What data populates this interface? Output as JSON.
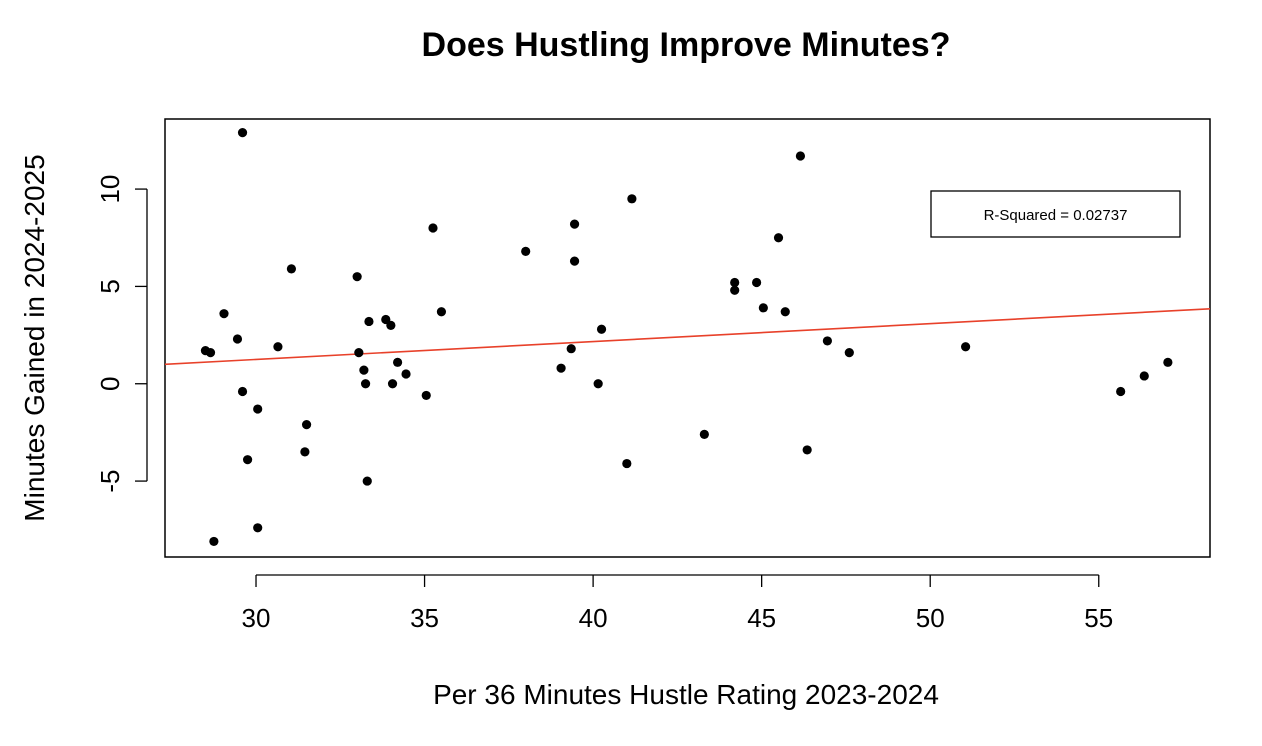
{
  "chart_data": {
    "type": "scatter",
    "title": "Does Hustling Improve Minutes?",
    "xlabel": "Per 36 Minutes Hustle Rating 2023-2024",
    "ylabel": "Minutes Gained in 2024-2025",
    "xlim": [
      27.3,
      58.3
    ],
    "ylim": [
      -8.9,
      13.6
    ],
    "x_ticks": [
      30,
      35,
      40,
      45,
      50,
      55
    ],
    "y_ticks": [
      -5,
      0,
      5,
      10
    ],
    "grid": false,
    "legend": {
      "text": "R-Squared = 0.02737",
      "placement": "top-right"
    },
    "regression_line": {
      "color": "#e8412a",
      "x": [
        27.3,
        58.3
      ],
      "y": [
        1.0,
        3.85
      ]
    },
    "point_color": "#000000",
    "points": [
      {
        "x": 28.5,
        "y": 1.7
      },
      {
        "x": 28.65,
        "y": 1.6
      },
      {
        "x": 28.75,
        "y": -8.1
      },
      {
        "x": 29.05,
        "y": 3.6
      },
      {
        "x": 29.45,
        "y": 2.3
      },
      {
        "x": 29.6,
        "y": 12.9
      },
      {
        "x": 29.6,
        "y": -0.4
      },
      {
        "x": 29.75,
        "y": -3.9
      },
      {
        "x": 30.05,
        "y": -1.3
      },
      {
        "x": 30.05,
        "y": -7.4
      },
      {
        "x": 30.65,
        "y": 1.9
      },
      {
        "x": 31.05,
        "y": 5.9
      },
      {
        "x": 31.45,
        "y": -3.5
      },
      {
        "x": 31.5,
        "y": -2.1
      },
      {
        "x": 33.0,
        "y": 5.5
      },
      {
        "x": 33.05,
        "y": 1.6
      },
      {
        "x": 33.2,
        "y": 0.7
      },
      {
        "x": 33.25,
        "y": 0.0
      },
      {
        "x": 33.3,
        "y": -5.0
      },
      {
        "x": 33.35,
        "y": 3.2
      },
      {
        "x": 33.85,
        "y": 3.3
      },
      {
        "x": 34.0,
        "y": 3.0
      },
      {
        "x": 34.05,
        "y": 0.0
      },
      {
        "x": 34.2,
        "y": 1.1
      },
      {
        "x": 34.45,
        "y": 0.5
      },
      {
        "x": 35.05,
        "y": -0.6
      },
      {
        "x": 35.25,
        "y": 8.0
      },
      {
        "x": 35.5,
        "y": 3.7
      },
      {
        "x": 38.0,
        "y": 6.8
      },
      {
        "x": 39.05,
        "y": 0.8
      },
      {
        "x": 39.35,
        "y": 1.8
      },
      {
        "x": 39.45,
        "y": 8.2
      },
      {
        "x": 39.45,
        "y": 6.3
      },
      {
        "x": 40.15,
        "y": 0.0
      },
      {
        "x": 40.25,
        "y": 2.8
      },
      {
        "x": 41.0,
        "y": -4.1
      },
      {
        "x": 41.15,
        "y": 9.5
      },
      {
        "x": 43.3,
        "y": -2.6
      },
      {
        "x": 44.2,
        "y": 5.2
      },
      {
        "x": 44.2,
        "y": 4.8
      },
      {
        "x": 44.85,
        "y": 5.2
      },
      {
        "x": 45.05,
        "y": 3.9
      },
      {
        "x": 45.5,
        "y": 7.5
      },
      {
        "x": 45.7,
        "y": 3.7
      },
      {
        "x": 46.15,
        "y": 11.7
      },
      {
        "x": 46.35,
        "y": -3.4
      },
      {
        "x": 46.95,
        "y": 2.2
      },
      {
        "x": 47.6,
        "y": 1.6
      },
      {
        "x": 51.05,
        "y": 1.9
      },
      {
        "x": 55.65,
        "y": -0.4
      },
      {
        "x": 56.35,
        "y": 0.4
      },
      {
        "x": 57.05,
        "y": 1.1
      }
    ]
  }
}
